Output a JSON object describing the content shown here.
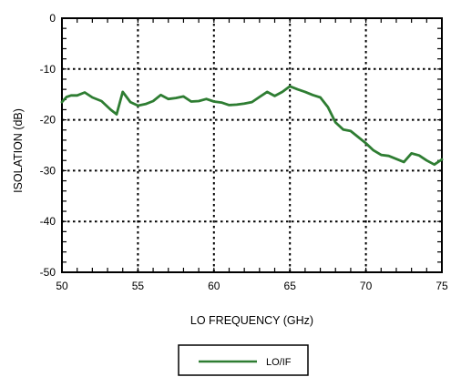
{
  "chart_data": {
    "type": "line",
    "title": "",
    "xlabel": "LO FREQUENCY (GHz)",
    "ylabel": "ISOLATION  (dB)",
    "xlim": [
      50,
      75
    ],
    "ylim": [
      -50,
      0
    ],
    "xticks": [
      50,
      55,
      60,
      65,
      70,
      75
    ],
    "yticks": [
      0,
      -10,
      -20,
      -30,
      -40,
      -50
    ],
    "xtick_labels": [
      "50",
      "55",
      "60",
      "65",
      "70",
      "75"
    ],
    "ytick_labels": [
      "0",
      "-10",
      "-20",
      "-30",
      "-40",
      "-50"
    ],
    "grid": true,
    "legend_position": "bottom-center",
    "series": [
      {
        "name": "LO/IF",
        "color": "#2e7d32",
        "x": [
          50,
          50.3,
          50.6,
          51.0,
          51.5,
          52.0,
          52.6,
          53.2,
          53.6,
          54.0,
          54.5,
          55.0,
          55.5,
          56.0,
          56.5,
          57.0,
          57.5,
          58.0,
          58.5,
          59.0,
          59.5,
          60.0,
          60.5,
          61.0,
          61.5,
          62.0,
          62.5,
          63.0,
          63.5,
          64.0,
          64.5,
          65.0,
          65.5,
          66.0,
          66.5,
          67.0,
          67.5,
          68.0,
          68.5,
          69.0,
          69.5,
          70.0,
          70.5,
          71.0,
          71.5,
          72.0,
          72.5,
          73.0,
          73.5,
          74.0,
          74.5,
          75.0
        ],
        "values": [
          -16.5,
          -15.5,
          -15.2,
          -15.2,
          -14.6,
          -15.6,
          -16.3,
          -18.0,
          -18.9,
          -14.5,
          -16.5,
          -17.2,
          -16.9,
          -16.3,
          -15.1,
          -15.9,
          -15.7,
          -15.4,
          -16.4,
          -16.3,
          -15.9,
          -16.4,
          -16.6,
          -17.1,
          -17.0,
          -16.8,
          -16.5,
          -15.5,
          -14.5,
          -15.3,
          -14.5,
          -13.4,
          -14.0,
          -14.5,
          -15.1,
          -15.6,
          -17.5,
          -20.5,
          -21.9,
          -22.2,
          -23.4,
          -24.6,
          -26.0,
          -26.9,
          -27.1,
          -27.7,
          -28.3,
          -26.6,
          -27.0,
          -28.0,
          -28.8,
          -27.8
        ]
      }
    ]
  }
}
